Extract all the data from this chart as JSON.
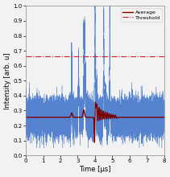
{
  "title": "",
  "xlabel": "Time [μs]",
  "ylabel": "Intensity [arb. u]",
  "xlim": [
    0,
    8
  ],
  "ylim": [
    0,
    1.0
  ],
  "yticks": [
    0,
    0.1,
    0.2,
    0.3,
    0.4,
    0.5,
    0.6,
    0.7,
    0.8,
    0.9,
    1.0
  ],
  "xticks": [
    0,
    1,
    2,
    3,
    4,
    5,
    6,
    7,
    8
  ],
  "threshold": 0.665,
  "noise_base": 0.255,
  "noise_std": 0.06,
  "avg_base": 0.255,
  "line_color_noise": "#4477cc",
  "line_color_avg": "#7a0000",
  "line_color_threshold": "#cc2222",
  "legend_avg": "Average",
  "legend_threshold": "Threshold",
  "bg_color": "#f2f2f2",
  "figsize": [
    2.11,
    2.2
  ],
  "dpi": 100
}
